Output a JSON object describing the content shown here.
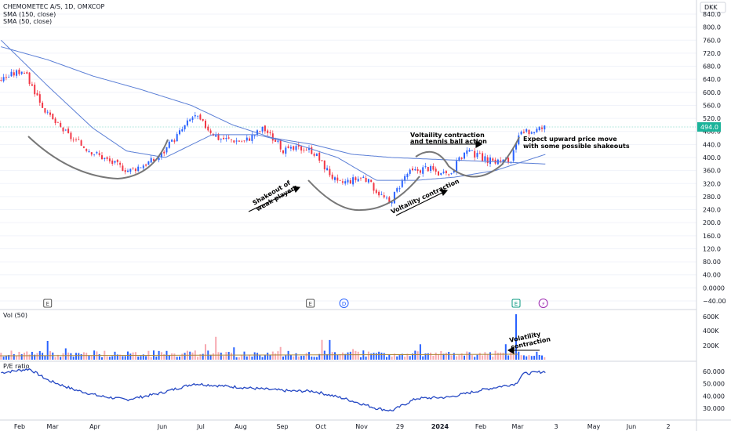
{
  "header": {
    "symbol": "CHEMOMETEC A/S, 1D, OMXCOP",
    "sma150": "SMA (150, close)",
    "sma50": "SMA (50, close)",
    "currency": "DKK"
  },
  "price_tag": "494.0",
  "vol_label": "Vol (50)",
  "pe_label": "P/E ratio",
  "annotations": {
    "volatility_tennis": [
      "Voltaility contraction",
      "and tennis ball action"
    ],
    "expect": [
      "Expect upward price move",
      "with some possible shakeouts"
    ],
    "shakeout": [
      "Shakeout of",
      "weak players"
    ],
    "volatility_contraction": "Voltaility contraction",
    "vol_contraction": [
      "Volatility",
      "contraction"
    ]
  },
  "event_markers": [
    {
      "symbol": "E",
      "date": "2023-02-08"
    },
    {
      "symbol": "E",
      "date": "2023-08-30"
    },
    {
      "symbol": "D",
      "date": "2023-09-25"
    },
    {
      "symbol": "E",
      "date": "2024-02-05"
    },
    {
      "symbol": "⚡",
      "date": "2024-02-26"
    }
  ],
  "colors": {
    "up": "#2962ff",
    "down": "#f23645",
    "sma": "#5b7fd6",
    "pe": "#2548c4",
    "grid": "#f0f3fa"
  },
  "chart_data": {
    "type": "line",
    "title": "CHEMOMETEC A/S, 1D, OMXCOP",
    "x_ticks": [
      "Feb",
      "Mar",
      "Apr",
      "Jun",
      "Jul",
      "Aug",
      "Sep",
      "Oct",
      "Nov",
      "29",
      "2024",
      "Feb",
      "Mar",
      "3",
      "May",
      "Jun",
      "2"
    ],
    "price_ticks": [
      "840.0",
      "800.0",
      "760.0",
      "720.0",
      "680.0",
      "640.0",
      "600.0",
      "560.0",
      "520.0",
      "480.0",
      "440.0",
      "400.0",
      "360.0",
      "320.0",
      "280.0",
      "240.0",
      "200.0",
      "160.0",
      "120.0",
      "80.00",
      "40.00",
      "0.0000",
      "−40.00"
    ],
    "price_range": [
      -40,
      840
    ],
    "volume_ticks": [
      "600K",
      "400K",
      "200K"
    ],
    "pe_ticks": [
      "60.000",
      "50.000",
      "40.000",
      "30.000"
    ],
    "series": [
      {
        "name": "Price",
        "x": [
          "2023-01-03",
          "2023-01-20",
          "2023-02-08",
          "2023-03-01",
          "2023-03-27",
          "2023-04-12",
          "2023-05-05",
          "2023-06-01",
          "2023-06-20",
          "2023-07-10",
          "2023-07-25",
          "2023-08-10",
          "2023-08-25",
          "2023-09-01",
          "2023-09-20",
          "2023-10-10",
          "2023-10-30",
          "2023-11-12",
          "2023-11-28",
          "2023-12-14",
          "2023-12-28",
          "2024-01-15",
          "2024-02-01",
          "2024-02-08",
          "2024-02-28"
        ],
        "values": [
          640,
          670,
          530,
          450,
          390,
          360,
          400,
          530,
          460,
          450,
          490,
          420,
          430,
          420,
          320,
          340,
          260,
          350,
          370,
          340,
          420,
          390,
          390,
          470,
          494
        ]
      },
      {
        "name": "SMA (150, close)",
        "x": [
          "2023-01-03",
          "2023-02-08",
          "2023-03-15",
          "2023-04-20",
          "2023-05-30",
          "2023-07-01",
          "2023-08-01",
          "2023-09-01",
          "2023-10-01",
          "2023-11-01",
          "2023-12-01",
          "2024-01-01",
          "2024-02-01",
          "2024-02-28"
        ],
        "values": [
          740,
          700,
          650,
          610,
          560,
          500,
          460,
          440,
          410,
          400,
          395,
          390,
          385,
          380
        ]
      },
      {
        "name": "SMA (50, close)",
        "x": [
          "2023-01-03",
          "2023-02-08",
          "2023-03-15",
          "2023-04-10",
          "2023-05-10",
          "2023-06-15",
          "2023-07-20",
          "2023-08-20",
          "2023-09-20",
          "2023-10-20",
          "2023-11-20",
          "2023-12-20",
          "2024-01-20",
          "2024-02-28"
        ],
        "values": [
          760,
          620,
          490,
          420,
          400,
          470,
          470,
          440,
          400,
          330,
          330,
          340,
          360,
          410
        ]
      },
      {
        "name": "P/E ratio",
        "x": [
          "2023-01-03",
          "2023-01-25",
          "2023-02-08",
          "2023-03-01",
          "2023-03-20",
          "2023-04-10",
          "2023-05-05",
          "2023-06-01",
          "2023-06-25",
          "2023-07-20",
          "2023-08-15",
          "2023-09-01",
          "2023-09-25",
          "2023-10-20",
          "2023-11-01",
          "2023-11-20",
          "2023-12-15",
          "2024-01-10",
          "2024-01-25",
          "2024-02-05",
          "2024-02-10",
          "2024-02-28"
        ],
        "values": [
          59,
          62,
          53,
          45,
          40,
          37,
          42,
          50,
          48,
          46,
          44,
          44,
          38,
          30,
          28,
          38,
          39,
          45,
          48,
          50,
          58,
          60
        ]
      }
    ]
  }
}
